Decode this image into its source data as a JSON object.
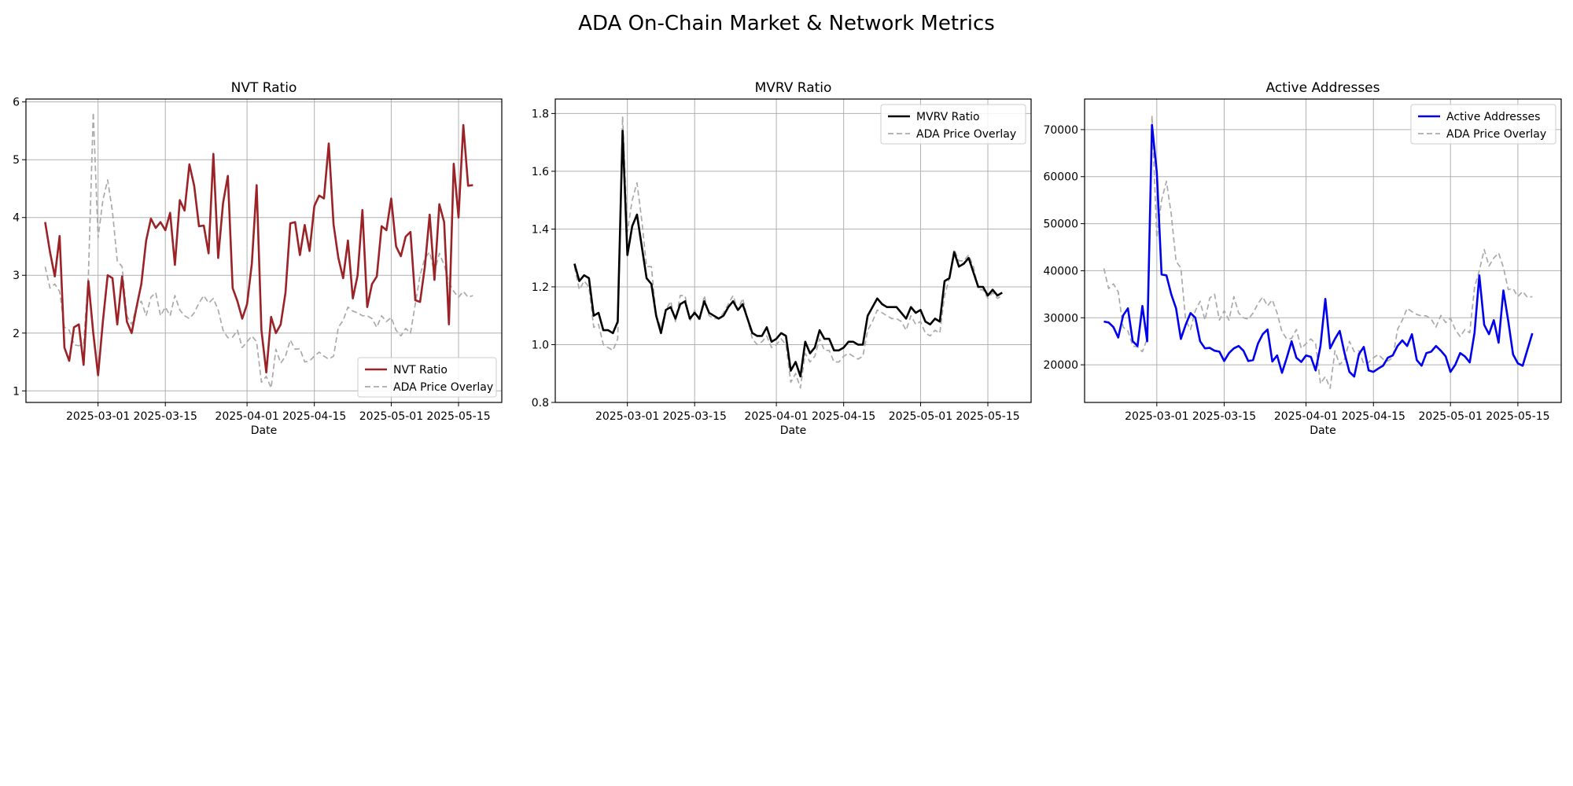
{
  "figure": {
    "suptitle": "ADA On-Chain Market & Network Metrics"
  },
  "colors": {
    "nvt": "#9b2226",
    "mvrv": "#000000",
    "active": "#0000ee",
    "overlay": "#aaaaaa"
  },
  "chart_data": [
    {
      "type": "line",
      "title": "NVT Ratio",
      "xlabel": "Date",
      "ylabel": "",
      "x_start": "2025-02-18",
      "x_end": "2025-05-20",
      "xlim": [
        "2025-02-14",
        "2025-05-24"
      ],
      "ylim": [
        0.8,
        6.05
      ],
      "xticks": [
        "2025-03-01",
        "2025-03-15",
        "2025-04-01",
        "2025-04-15",
        "2025-05-01",
        "2025-05-15"
      ],
      "yticks": [
        1,
        2,
        3,
        4,
        5,
        6
      ],
      "grid": true,
      "legend_position": "lower-right",
      "series": [
        {
          "name": "NVT Ratio",
          "color": "#9b2226",
          "style": "solid",
          "values": [
            3.92,
            3.4,
            2.98,
            3.68,
            1.75,
            1.52,
            2.1,
            2.15,
            1.45,
            2.9,
            2.0,
            1.27,
            2.2,
            3.0,
            2.95,
            2.15,
            2.98,
            2.2,
            2.0,
            2.45,
            2.85,
            3.6,
            3.98,
            3.82,
            3.92,
            3.78,
            4.08,
            3.18,
            4.3,
            4.12,
            4.92,
            4.55,
            3.85,
            3.86,
            3.38,
            5.1,
            3.3,
            4.25,
            4.72,
            2.78,
            2.55,
            2.25,
            2.5,
            3.2,
            4.56,
            2.05,
            1.32,
            2.28,
            2.0,
            2.15,
            2.7,
            3.9,
            3.92,
            3.35,
            3.87,
            3.42,
            4.2,
            4.38,
            4.33,
            5.28,
            3.88,
            3.3,
            2.95,
            3.6,
            2.6,
            3.0,
            4.13,
            2.45,
            2.85,
            2.98,
            3.85,
            3.78,
            4.33,
            3.5,
            3.33,
            3.67,
            3.75,
            2.57,
            2.54,
            3.15,
            4.05,
            2.92,
            4.23,
            3.92,
            2.15,
            4.93,
            4.0,
            5.6,
            4.55,
            4.56
          ]
        },
        {
          "name": "ADA Price Overlay",
          "color": "#aaaaaa",
          "style": "dashed",
          "values": [
            3.15,
            2.78,
            2.85,
            2.72,
            2.1,
            2.05,
            1.8,
            1.78,
            1.82,
            3.0,
            5.82,
            3.65,
            4.3,
            4.65,
            4.1,
            3.25,
            3.15,
            2.3,
            2.15,
            2.45,
            2.55,
            2.3,
            2.62,
            2.7,
            2.3,
            2.45,
            2.3,
            2.65,
            2.4,
            2.3,
            2.25,
            2.35,
            2.52,
            2.65,
            2.52,
            2.6,
            2.4,
            2.05,
            1.92,
            1.93,
            2.05,
            1.75,
            1.85,
            1.95,
            1.85,
            1.15,
            1.25,
            1.05,
            1.72,
            1.48,
            1.6,
            1.88,
            1.72,
            1.73,
            1.5,
            1.52,
            1.6,
            1.67,
            1.6,
            1.55,
            1.6,
            2.1,
            2.22,
            2.45,
            2.38,
            2.35,
            2.3,
            2.3,
            2.25,
            2.1,
            2.3,
            2.2,
            2.27,
            2.05,
            1.95,
            2.08,
            2.0,
            2.5,
            3.0,
            3.3,
            3.4,
            3.05,
            3.38,
            3.18,
            2.88,
            2.72,
            2.62,
            2.72,
            2.62,
            2.65
          ]
        }
      ]
    },
    {
      "type": "line",
      "title": "MVRV Ratio",
      "xlabel": "Date",
      "ylabel": "",
      "x_start": "2025-02-18",
      "x_end": "2025-05-20",
      "xlim": [
        "2025-02-14",
        "2025-05-24"
      ],
      "ylim": [
        0.8,
        1.85
      ],
      "xticks": [
        "2025-03-01",
        "2025-03-15",
        "2025-04-01",
        "2025-04-15",
        "2025-05-01",
        "2025-05-15"
      ],
      "yticks": [
        0.8,
        1.0,
        1.2,
        1.4,
        1.6,
        1.8
      ],
      "grid": true,
      "legend_position": "upper-right",
      "series": [
        {
          "name": "MVRV Ratio",
          "color": "#000000",
          "style": "solid",
          "values": [
            1.28,
            1.22,
            1.24,
            1.23,
            1.1,
            1.11,
            1.05,
            1.05,
            1.04,
            1.08,
            1.74,
            1.31,
            1.41,
            1.45,
            1.34,
            1.23,
            1.21,
            1.1,
            1.04,
            1.12,
            1.13,
            1.09,
            1.14,
            1.15,
            1.09,
            1.11,
            1.09,
            1.15,
            1.11,
            1.1,
            1.09,
            1.1,
            1.13,
            1.15,
            1.12,
            1.14,
            1.09,
            1.04,
            1.03,
            1.03,
            1.06,
            1.01,
            1.02,
            1.04,
            1.03,
            0.91,
            0.94,
            0.89,
            1.01,
            0.97,
            0.99,
            1.05,
            1.02,
            1.02,
            0.98,
            0.98,
            0.99,
            1.01,
            1.01,
            1.0,
            1.0,
            1.1,
            1.13,
            1.16,
            1.14,
            1.13,
            1.13,
            1.13,
            1.11,
            1.09,
            1.13,
            1.11,
            1.12,
            1.08,
            1.07,
            1.09,
            1.08,
            1.22,
            1.23,
            1.32,
            1.27,
            1.28,
            1.3,
            1.25,
            1.2,
            1.2,
            1.17,
            1.19,
            1.17,
            1.18
          ]
        },
        {
          "name": "ADA Price Overlay",
          "color": "#aaaaaa",
          "style": "dashed",
          "values": [
            1.27,
            1.19,
            1.22,
            1.2,
            1.06,
            1.07,
            1.0,
            0.99,
            0.98,
            1.02,
            1.79,
            1.39,
            1.5,
            1.56,
            1.43,
            1.27,
            1.27,
            1.1,
            1.06,
            1.12,
            1.15,
            1.08,
            1.17,
            1.17,
            1.08,
            1.12,
            1.08,
            1.17,
            1.1,
            1.09,
            1.09,
            1.11,
            1.14,
            1.17,
            1.12,
            1.16,
            1.09,
            1.02,
            1.0,
            1.01,
            1.03,
            0.99,
            1.0,
            1.02,
            1.0,
            0.87,
            0.9,
            0.85,
            0.97,
            0.94,
            0.96,
            1.02,
            0.98,
            0.98,
            0.94,
            0.94,
            0.96,
            0.97,
            0.96,
            0.95,
            0.96,
            1.05,
            1.08,
            1.12,
            1.11,
            1.1,
            1.09,
            1.09,
            1.08,
            1.05,
            1.1,
            1.07,
            1.08,
            1.04,
            1.03,
            1.05,
            1.04,
            1.17,
            1.23,
            1.33,
            1.29,
            1.29,
            1.31,
            1.27,
            1.19,
            1.19,
            1.16,
            1.18,
            1.16,
            1.17
          ]
        }
      ]
    },
    {
      "type": "line",
      "title": "Active Addresses",
      "xlabel": "Date",
      "ylabel": "",
      "x_start": "2025-02-18",
      "x_end": "2025-05-20",
      "xlim": [
        "2025-02-14",
        "2025-05-24"
      ],
      "ylim": [
        12000,
        76500
      ],
      "xticks": [
        "2025-03-01",
        "2025-03-15",
        "2025-04-01",
        "2025-04-15",
        "2025-05-01",
        "2025-05-15"
      ],
      "yticks": [
        20000,
        30000,
        40000,
        50000,
        60000,
        70000
      ],
      "grid": true,
      "legend_position": "upper-right",
      "series": [
        {
          "name": "Active Addresses",
          "color": "#0000ee",
          "style": "solid",
          "values": [
            29200,
            29000,
            28000,
            25800,
            30500,
            32000,
            25000,
            24000,
            32500,
            25000,
            71000,
            61000,
            39200,
            39000,
            35000,
            32000,
            25500,
            28500,
            31000,
            30000,
            25000,
            23500,
            23600,
            23000,
            22800,
            20800,
            22500,
            23500,
            24000,
            23000,
            20800,
            21000,
            24500,
            26500,
            27500,
            20700,
            22000,
            18300,
            21500,
            25000,
            21500,
            20600,
            22000,
            21700,
            18800,
            24000,
            34000,
            23500,
            25500,
            27200,
            22500,
            18500,
            17500,
            22300,
            23800,
            18800,
            18500,
            19200,
            19800,
            21500,
            22000,
            24000,
            25200,
            24000,
            26500,
            21000,
            19800,
            22500,
            22800,
            24000,
            23000,
            21800,
            18500,
            20000,
            22500,
            21800,
            20500,
            26800,
            39000,
            28500,
            26500,
            29500,
            24700,
            35800,
            29300,
            22200,
            20300,
            19800,
            23300,
            26700
          ]
        },
        {
          "name": "ADA Price Overlay",
          "color": "#aaaaaa",
          "style": "dashed",
          "values": [
            40500,
            36200,
            37200,
            35500,
            28000,
            27200,
            24000,
            23800,
            22800,
            25500,
            73000,
            47000,
            55000,
            59000,
            52000,
            42000,
            40600,
            29500,
            27500,
            31500,
            33500,
            29500,
            34200,
            35000,
            29500,
            31500,
            29500,
            34500,
            31000,
            30000,
            29700,
            31000,
            33000,
            34400,
            32500,
            33800,
            31000,
            27000,
            25500,
            25600,
            27500,
            23500,
            24500,
            25500,
            24500,
            16000,
            17500,
            15000,
            23000,
            20000,
            21200,
            25000,
            22800,
            23000,
            20200,
            20500,
            21500,
            22200,
            21200,
            20800,
            21500,
            27500,
            29500,
            32000,
            31300,
            30700,
            30400,
            30400,
            29700,
            28000,
            30500,
            29000,
            29900,
            27500,
            26000,
            27500,
            26800,
            36500,
            40000,
            44500,
            41000,
            42700,
            43800,
            40700,
            36000,
            36200,
            34500,
            35600,
            34300,
            34500
          ]
        }
      ]
    }
  ]
}
